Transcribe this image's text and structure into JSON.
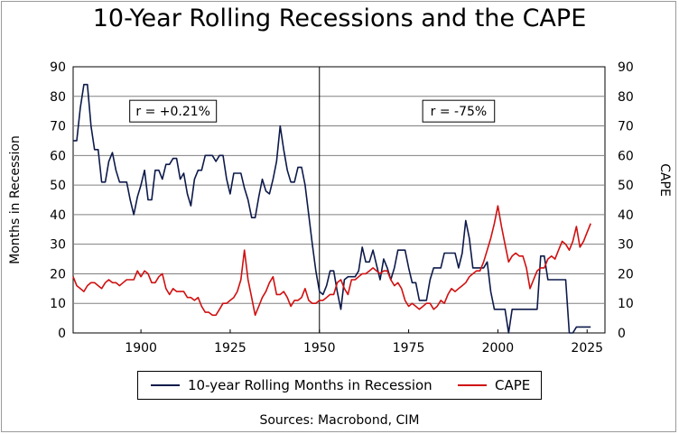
{
  "colors": {
    "recession": "#0d1a4a",
    "cape": "#d01010",
    "grid": "#808080",
    "axis": "#000000"
  },
  "chart_data": {
    "type": "line",
    "title": "10-Year Rolling Recessions and the CAPE",
    "ylabel_left": "Months in Recession",
    "ylabel_right": "CAPE",
    "xlim": [
      1881,
      2030
    ],
    "ylim_left": [
      0,
      90
    ],
    "ylim_right": [
      0,
      90
    ],
    "x_ticks": [
      "1900",
      "1925",
      "1950",
      "1975",
      "2000",
      "2025"
    ],
    "x_tick_values": [
      1900,
      1925,
      1950,
      1975,
      2000,
      2025
    ],
    "y_ticks_left": [
      "0",
      "10",
      "20",
      "30",
      "40",
      "50",
      "60",
      "70",
      "80",
      "90"
    ],
    "y_ticks_right": [
      "0",
      "10",
      "20",
      "30",
      "40",
      "50",
      "60",
      "70",
      "80",
      "90"
    ],
    "y_tick_values": [
      0,
      10,
      20,
      30,
      40,
      50,
      60,
      70,
      80,
      90
    ],
    "grid": true,
    "legend_position": "bottom",
    "divider_x": 1950,
    "annotations": [
      {
        "text": "r = +0.21%",
        "x": 1909,
        "y": 75
      },
      {
        "text": "r = -75%",
        "x": 1989,
        "y": 75
      }
    ],
    "series": [
      {
        "name": "10-year Rolling Months in Recession",
        "axis": "left",
        "x": [
          1881,
          1882,
          1883,
          1884,
          1885,
          1886,
          1887,
          1888,
          1889,
          1890,
          1891,
          1892,
          1893,
          1894,
          1895,
          1896,
          1897,
          1898,
          1899,
          1900,
          1901,
          1902,
          1903,
          1904,
          1905,
          1906,
          1907,
          1908,
          1909,
          1910,
          1911,
          1912,
          1913,
          1914,
          1915,
          1916,
          1917,
          1918,
          1919,
          1920,
          1921,
          1922,
          1923,
          1924,
          1925,
          1926,
          1927,
          1928,
          1929,
          1930,
          1931,
          1932,
          1933,
          1934,
          1935,
          1936,
          1937,
          1938,
          1939,
          1940,
          1941,
          1942,
          1943,
          1944,
          1945,
          1946,
          1947,
          1948,
          1949,
          1950,
          1951,
          1952,
          1953,
          1954,
          1955,
          1956,
          1957,
          1958,
          1959,
          1960,
          1961,
          1962,
          1963,
          1964,
          1965,
          1966,
          1967,
          1968,
          1969,
          1970,
          1971,
          1972,
          1973,
          1974,
          1975,
          1976,
          1977,
          1978,
          1979,
          1980,
          1981,
          1982,
          1983,
          1984,
          1985,
          1986,
          1987,
          1988,
          1989,
          1990,
          1991,
          1992,
          1993,
          1994,
          1995,
          1996,
          1997,
          1998,
          1999,
          2000,
          2001,
          2002,
          2003,
          2004,
          2005,
          2006,
          2007,
          2008,
          2009,
          2010,
          2011,
          2012,
          2013,
          2014,
          2015,
          2016,
          2017,
          2018,
          2019,
          2020,
          2021,
          2022,
          2023,
          2024,
          2025,
          2026
        ],
        "values": [
          65,
          65,
          76,
          84,
          84,
          70,
          62,
          62,
          51,
          51,
          58,
          61,
          55,
          51,
          51,
          51,
          45,
          40,
          46,
          50,
          55,
          45,
          45,
          55,
          55,
          52,
          57,
          57,
          59,
          59,
          52,
          54,
          47,
          43,
          52,
          55,
          55,
          60,
          60,
          60,
          58,
          60,
          60,
          52,
          47,
          54,
          54,
          54,
          49,
          45,
          39,
          39,
          46,
          52,
          48,
          47,
          52,
          58,
          70,
          62,
          55,
          51,
          51,
          56,
          56,
          50,
          40,
          30,
          21,
          14,
          13,
          16,
          21,
          21,
          14,
          8,
          18,
          19,
          19,
          19,
          21,
          29,
          24,
          24,
          28,
          23,
          18,
          25,
          22,
          18,
          22,
          28,
          28,
          28,
          22,
          17,
          17,
          11,
          11,
          11,
          18,
          22,
          22,
          22,
          27,
          27,
          27,
          27,
          22,
          27,
          38,
          32,
          22,
          22,
          22,
          22,
          24,
          14,
          8,
          8,
          8,
          8,
          0,
          8,
          8,
          8,
          8,
          8,
          8,
          8,
          8,
          26,
          26,
          18,
          18,
          18,
          18,
          18,
          18,
          0,
          0,
          2,
          2,
          2,
          2,
          2
        ]
      },
      {
        "name": "CAPE",
        "axis": "right",
        "x": [
          1881,
          1882,
          1883,
          1884,
          1885,
          1886,
          1887,
          1888,
          1889,
          1890,
          1891,
          1892,
          1893,
          1894,
          1895,
          1896,
          1897,
          1898,
          1899,
          1900,
          1901,
          1902,
          1903,
          1904,
          1905,
          1906,
          1907,
          1908,
          1909,
          1910,
          1911,
          1912,
          1913,
          1914,
          1915,
          1916,
          1917,
          1918,
          1919,
          1920,
          1921,
          1922,
          1923,
          1924,
          1925,
          1926,
          1927,
          1928,
          1929,
          1930,
          1931,
          1932,
          1933,
          1934,
          1935,
          1936,
          1937,
          1938,
          1939,
          1940,
          1941,
          1942,
          1943,
          1944,
          1945,
          1946,
          1947,
          1948,
          1949,
          1950,
          1951,
          1952,
          1953,
          1954,
          1955,
          1956,
          1957,
          1958,
          1959,
          1960,
          1961,
          1962,
          1963,
          1964,
          1965,
          1966,
          1967,
          1968,
          1969,
          1970,
          1971,
          1972,
          1973,
          1974,
          1975,
          1976,
          1977,
          1978,
          1979,
          1980,
          1981,
          1982,
          1983,
          1984,
          1985,
          1986,
          1987,
          1988,
          1989,
          1990,
          1991,
          1992,
          1993,
          1994,
          1995,
          1996,
          1997,
          1998,
          1999,
          2000,
          2001,
          2002,
          2003,
          2004,
          2005,
          2006,
          2007,
          2008,
          2009,
          2010,
          2011,
          2012,
          2013,
          2014,
          2015,
          2016,
          2017,
          2018,
          2019,
          2020,
          2021,
          2022,
          2023,
          2024,
          2025,
          2026
        ],
        "values": [
          19,
          16,
          15,
          14,
          16,
          17,
          17,
          16,
          15,
          17,
          18,
          17,
          17,
          16,
          17,
          18,
          18,
          18,
          21,
          19,
          21,
          20,
          17,
          17,
          19,
          20,
          15,
          13,
          15,
          14,
          14,
          14,
          12,
          12,
          11,
          12,
          9,
          7,
          7,
          6,
          6,
          8,
          10,
          10,
          11,
          12,
          14,
          18,
          28,
          18,
          12,
          6,
          9,
          12,
          14,
          17,
          19,
          13,
          13,
          14,
          12,
          9,
          11,
          11,
          12,
          15,
          11,
          10,
          10,
          11,
          11,
          12,
          13,
          13,
          17,
          18,
          15,
          13,
          18,
          18,
          19,
          20,
          20,
          21,
          22,
          21,
          20,
          21,
          21,
          18,
          16,
          17,
          15,
          11,
          9,
          10,
          9,
          8,
          9,
          10,
          10,
          8,
          9,
          11,
          10,
          13,
          15,
          14,
          15,
          16,
          17,
          19,
          20,
          21,
          21,
          24,
          28,
          32,
          37,
          43,
          36,
          30,
          24,
          26,
          27,
          26,
          26,
          22,
          15,
          18,
          21,
          22,
          22,
          25,
          26,
          25,
          28,
          31,
          30,
          28,
          31,
          36,
          29,
          31,
          34,
          37
        ]
      }
    ]
  },
  "legend": {
    "recession_label": "10-year Rolling Months in Recession",
    "cape_label": "CAPE"
  },
  "footer": {
    "sources": "Sources:  Macrobond, CIM"
  }
}
